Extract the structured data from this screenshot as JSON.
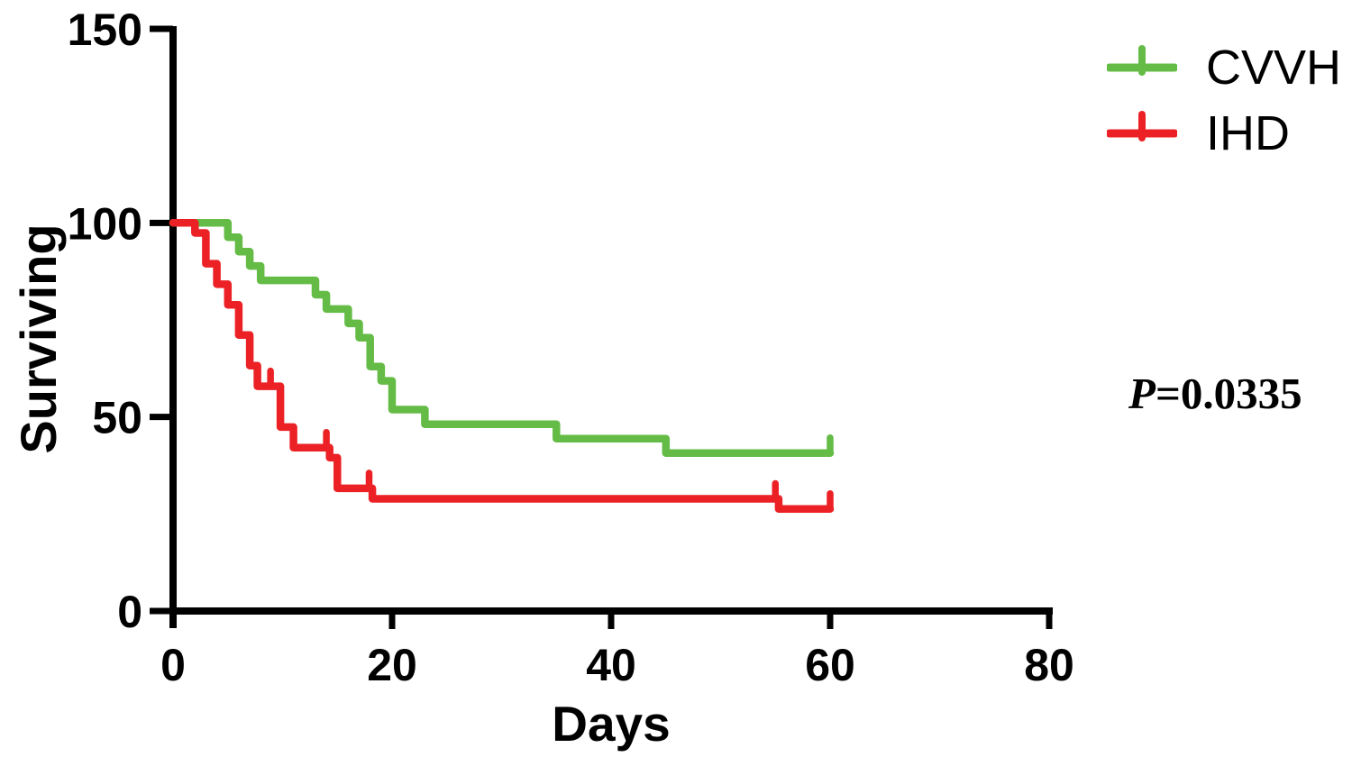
{
  "chart_data": {
    "type": "line",
    "subtype": "kaplan-meier-step-curve",
    "title": "",
    "xlabel": "Days",
    "ylabel": "Surviving",
    "xlim": [
      0,
      80
    ],
    "ylim": [
      0,
      150
    ],
    "x_ticks": [
      0,
      20,
      40,
      60,
      80
    ],
    "y_ticks": [
      0,
      50,
      100,
      150
    ],
    "grid": false,
    "legend_position": "top-right",
    "annotation_p_value": "P=0.0335",
    "series": [
      {
        "name": "CVVH",
        "color": "#64bc46",
        "steps": [
          [
            0,
            100
          ],
          [
            5,
            96.3
          ],
          [
            6,
            92.6
          ],
          [
            7,
            88.9
          ],
          [
            8,
            85.2
          ],
          [
            13,
            81.5
          ],
          [
            14,
            77.8
          ],
          [
            16,
            74.1
          ],
          [
            17,
            70.4
          ],
          [
            18,
            63.0
          ],
          [
            19,
            59.3
          ],
          [
            20,
            51.9
          ],
          [
            23,
            48.1
          ],
          [
            35,
            44.4
          ],
          [
            45,
            40.7
          ]
        ],
        "end_day": 60,
        "final_value": 40.7,
        "censor_days": [
          60
        ]
      },
      {
        "name": "IHD",
        "color": "#ec2126",
        "steps": [
          [
            0,
            100
          ],
          [
            2,
            97.4
          ],
          [
            3,
            89.5
          ],
          [
            4,
            84.2
          ],
          [
            5,
            78.9
          ],
          [
            6,
            71.1
          ],
          [
            7,
            63.2
          ],
          [
            7.7,
            57.9
          ],
          [
            9.8,
            47.4
          ],
          [
            11,
            42.1
          ],
          [
            14.3,
            39.5
          ],
          [
            15,
            31.6
          ],
          [
            18.2,
            28.9
          ],
          [
            55.3,
            26.3
          ]
        ],
        "end_day": 60,
        "final_value": 26.3,
        "censor_days": [
          8.9,
          14,
          17.9,
          55,
          60
        ]
      }
    ]
  },
  "axis": {
    "xlabel": "Days",
    "ylabel": "Surviving"
  },
  "legend": {
    "items": [
      {
        "label": "CVVH",
        "color": "#64bc46"
      },
      {
        "label": "IHD",
        "color": "#ec2126"
      }
    ]
  },
  "annotation": {
    "p_symbol": "P",
    "p_text": "=0.0335"
  }
}
